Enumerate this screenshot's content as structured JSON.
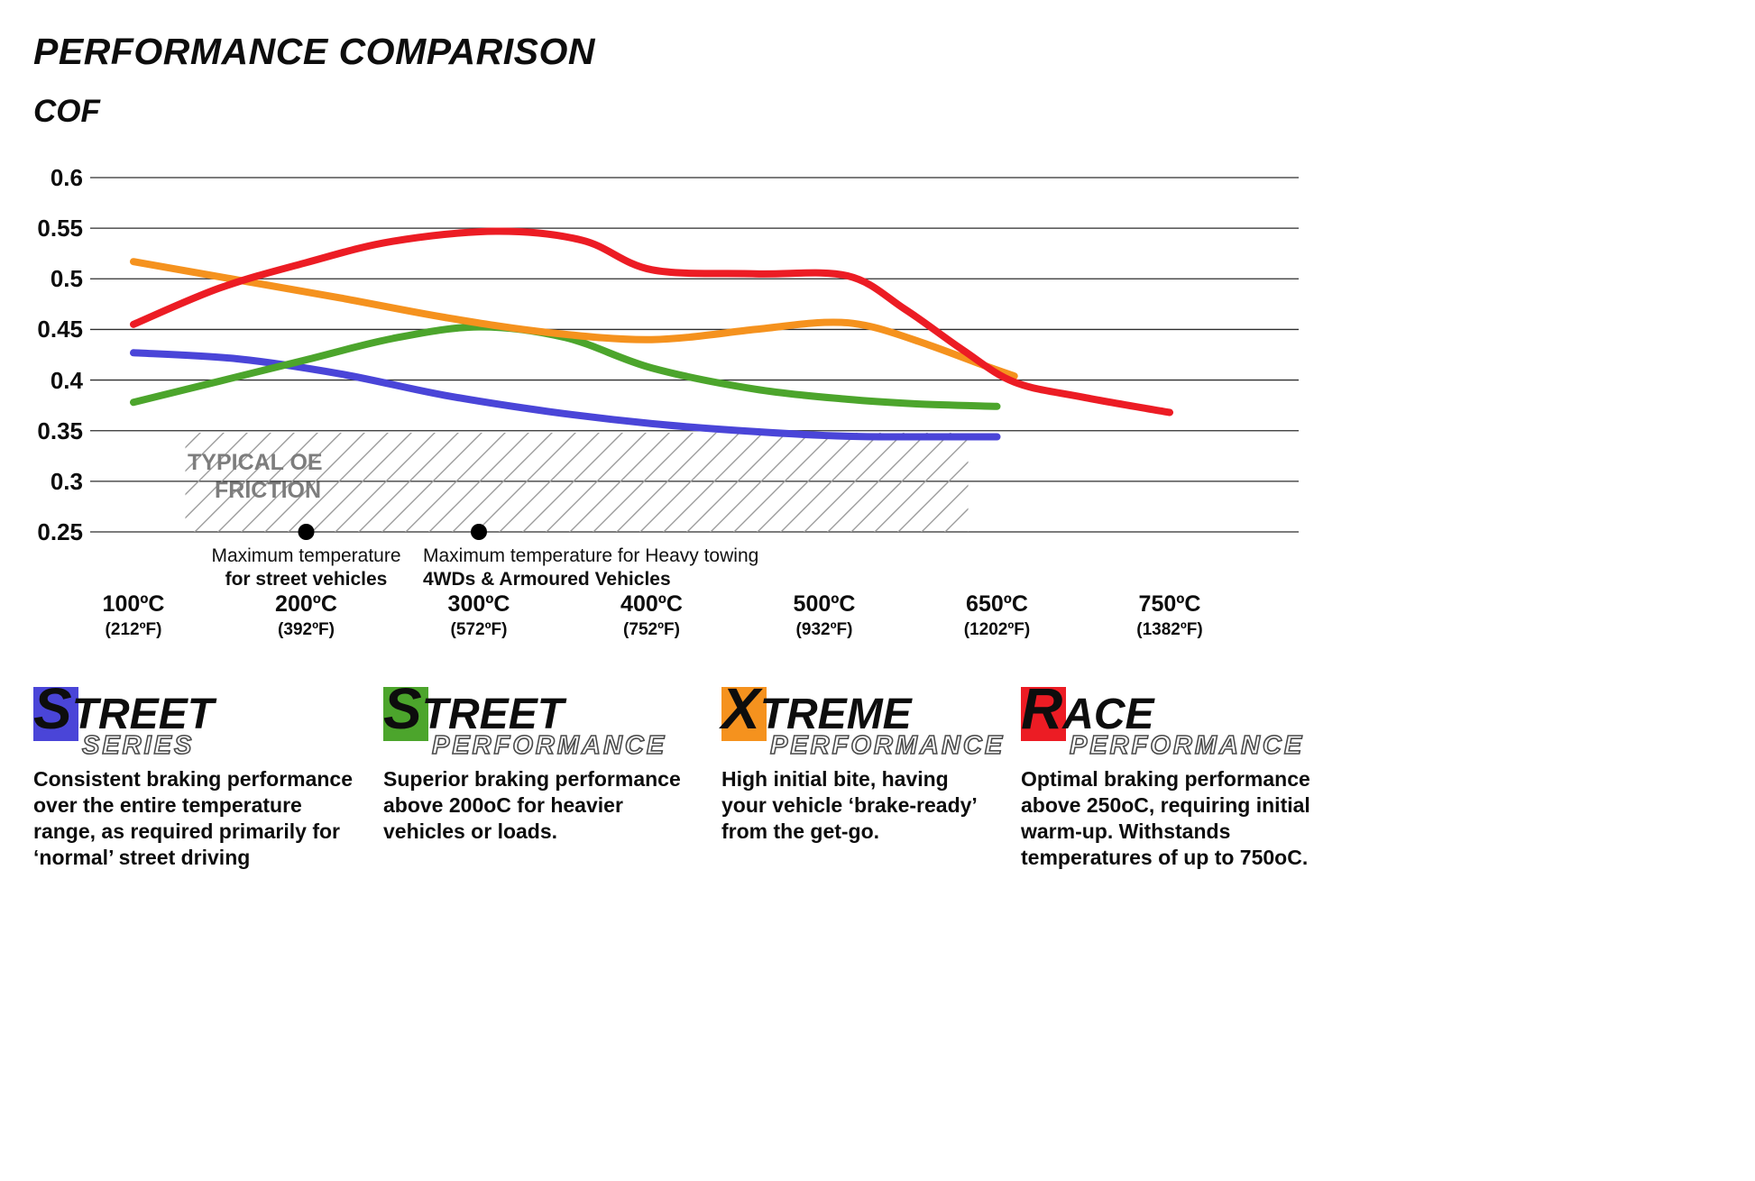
{
  "page": {
    "title": "PERFORMANCE COMPARISON",
    "ylabel": "COF"
  },
  "chart_data": {
    "type": "line",
    "title": "PERFORMANCE COMPARISON",
    "ylabel": "COF",
    "ylim": [
      0.25,
      0.6
    ],
    "grid": true,
    "legend_position": "bottom",
    "y_ticks": [
      "0.6",
      "0.55",
      "0.5",
      "0.45",
      "0.4",
      "0.35",
      "0.3",
      "0.25"
    ],
    "y_tick_values": [
      0.6,
      0.55,
      0.5,
      0.45,
      0.4,
      0.35,
      0.3,
      0.25
    ],
    "x_ticks": [
      {
        "temp": 100,
        "label": "100ºC",
        "sub": "(212ºF)"
      },
      {
        "temp": 200,
        "label": "200ºC",
        "sub": "(392ºF)"
      },
      {
        "temp": 300,
        "label": "300ºC",
        "sub": "(572ºF)"
      },
      {
        "temp": 400,
        "label": "400ºC",
        "sub": "(752ºF)"
      },
      {
        "temp": 500,
        "label": "500ºC",
        "sub": "(932ºF)"
      },
      {
        "temp": 650,
        "label": "650ºC",
        "sub": "(1202ºF)"
      },
      {
        "temp": 750,
        "label": "750ºC",
        "sub": "(1382ºF)"
      }
    ],
    "series": [
      {
        "name": "Street Series",
        "key": "street-series",
        "color": "#4a45d8",
        "points": [
          [
            100,
            0.427
          ],
          [
            160,
            0.421
          ],
          [
            220,
            0.406
          ],
          [
            280,
            0.385
          ],
          [
            340,
            0.369
          ],
          [
            400,
            0.357
          ],
          [
            460,
            0.349
          ],
          [
            520,
            0.3445
          ],
          [
            580,
            0.344
          ],
          [
            650,
            0.344
          ]
        ]
      },
      {
        "name": "Street Performance",
        "key": "street-performance",
        "color": "#4ca52c",
        "points": [
          [
            100,
            0.378
          ],
          [
            150,
            0.399
          ],
          [
            200,
            0.42
          ],
          [
            250,
            0.441
          ],
          [
            300,
            0.4525
          ],
          [
            350,
            0.442
          ],
          [
            400,
            0.412
          ],
          [
            460,
            0.391
          ],
          [
            520,
            0.381
          ],
          [
            580,
            0.3765
          ],
          [
            650,
            0.374
          ]
        ]
      },
      {
        "name": "Xtreme Performance",
        "key": "xtreme-performance",
        "color": "#f5921e",
        "points": [
          [
            100,
            0.517
          ],
          [
            160,
            0.499
          ],
          [
            220,
            0.481
          ],
          [
            280,
            0.462
          ],
          [
            340,
            0.447
          ],
          [
            400,
            0.44
          ],
          [
            460,
            0.45
          ],
          [
            500,
            0.457
          ],
          [
            540,
            0.453
          ],
          [
            590,
            0.435
          ],
          [
            640,
            0.414
          ],
          [
            660,
            0.404
          ]
        ]
      },
      {
        "name": "Race Performance",
        "key": "race-performance",
        "color": "#ec1c24",
        "points": [
          [
            100,
            0.455
          ],
          [
            150,
            0.491
          ],
          [
            200,
            0.516
          ],
          [
            250,
            0.537
          ],
          [
            310,
            0.547
          ],
          [
            360,
            0.538
          ],
          [
            400,
            0.509
          ],
          [
            460,
            0.505
          ],
          [
            520,
            0.503
          ],
          [
            570,
            0.47
          ],
          [
            620,
            0.43
          ],
          [
            660,
            0.398
          ],
          [
            700,
            0.383
          ],
          [
            750,
            0.368
          ]
        ]
      }
    ],
    "oe_band": {
      "label_lines": [
        "TYPICAL OE",
        "FRICTION"
      ],
      "cof_top": 0.348,
      "cof_bottom": 0.25,
      "temp_start": 130,
      "temp_end": 625
    },
    "markers": [
      {
        "temp": 200,
        "cof": 0.25,
        "line1": "Maximum temperature",
        "line2": "for street vehicles",
        "align": "center"
      },
      {
        "temp": 300,
        "cof": 0.25,
        "line1": "Maximum temperature for Heavy towing",
        "line2": "4WDs & Armoured Vehicles",
        "align": "left"
      }
    ]
  },
  "legend": [
    {
      "series_key": "street-series",
      "first_letter": "S",
      "word_rest": "TREET",
      "second_word": "SERIES",
      "color": "#4a45d8",
      "description": "Consistent braking performance over the entire temperature range, as required primarily for ‘normal’ street driving"
    },
    {
      "series_key": "street-performance",
      "first_letter": "S",
      "word_rest": "TREET",
      "second_word": "PERFORMANCE",
      "color": "#4ca52c",
      "description": "Superior braking performance above 200oC for heavier vehicles or loads."
    },
    {
      "series_key": "xtreme-performance",
      "first_letter": "X",
      "word_rest": "TREME",
      "second_word": "PERFORMANCE",
      "color": "#f5921e",
      "description": "High initial bite, having your vehicle ‘brake-ready’ from the get-go."
    },
    {
      "series_key": "race-performance",
      "first_letter": "R",
      "word_rest": "ACE",
      "second_word": "PERFORMANCE",
      "color": "#ec1c24",
      "description": "Optimal braking performance above 250oC, requiring initial warm-up. Withstands temperatures of up to 750oC."
    }
  ]
}
